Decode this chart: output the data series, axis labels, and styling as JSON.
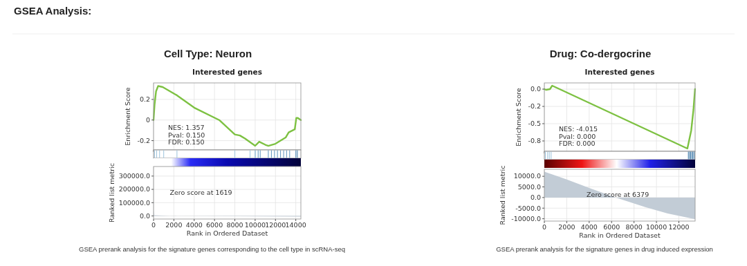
{
  "chart_data": [
    {
      "type": "line",
      "title": "Cell Type:   Neuron",
      "subtitle": "Interested genes",
      "ylabel": "Enrichment Score",
      "annotations": [
        "GSEA Analysis:",
        "NES: 1.357",
        "Pval: 0.150",
        "FDR: 0.150"
      ],
      "x": [
        0,
        100,
        250,
        450,
        900,
        2300,
        4000,
        6460,
        8000,
        8500,
        9000,
        10000,
        10400,
        11000,
        11300,
        12000,
        12500,
        13000,
        13300,
        13700,
        13900,
        14050,
        14200,
        14500
      ],
      "series": [
        {
          "color": "#7dc142",
          "values": [
            0,
            0.15,
            0.28,
            0.33,
            0.32,
            0.24,
            0.12,
            0,
            -0.14,
            -0.15,
            -0.18,
            -0.25,
            -0.21,
            -0.24,
            -0.25,
            -0.23,
            -0.2,
            -0.17,
            -0.12,
            -0.1,
            -0.09,
            0.02,
            0.02,
            0
          ]
        }
      ],
      "xlim": [
        0,
        14500
      ],
      "xticks": [
        0,
        2000,
        4000,
        6000,
        8000,
        10000,
        12000,
        14000
      ],
      "ylim": [
        -0.29,
        0.36
      ],
      "yticks": [
        -0.2,
        0,
        0.2
      ],
      "tick_labels": "y",
      "grid": true,
      "marker": "none",
      "line_style": "solid"
    },
    {
      "type": "area",
      "xlabel": "Rank in Ordered Dataset",
      "ylabel": "Ranked list metric",
      "annotations": [
        "Zero score at 1619",
        "GSEA prerank analysis for the signature genes corresponding to the cell type in scRNA-seq"
      ],
      "x": [
        0,
        8,
        60,
        1619,
        14500
      ],
      "series": [
        {
          "color": "#c2ccd6",
          "values": [
            354000,
            40000,
            5000,
            0,
            -5000
          ]
        }
      ],
      "xlim": [
        0,
        14500
      ],
      "xticks": [
        0,
        2000,
        4000,
        6000,
        8000,
        10000,
        12000,
        14000
      ],
      "ylim": [
        -23000,
        372000
      ],
      "yticks": [
        {
          "value": 0,
          "label": "0.0"
        },
        {
          "value": 100000,
          "label": "100000.0"
        },
        {
          "value": 200000,
          "label": "200000.0"
        },
        {
          "value": 300000,
          "label": "300000.0"
        }
      ],
      "grid": true
    },
    {
      "type": "line",
      "title": "Drug:  Co-dergocrine",
      "subtitle": "Interested genes",
      "ylabel": "Enrichment Score",
      "annotations": [
        "NES: -4.015",
        "Pval: 0.000",
        "FDR: 0.000"
      ],
      "x": [
        0,
        150,
        500,
        700,
        12760,
        13100,
        13300,
        13440
      ],
      "series": [
        {
          "color": "#7dc142",
          "values": [
            0,
            -0.01,
            0,
            0.05,
            -0.86,
            -0.6,
            -0.3,
            0
          ]
        }
      ],
      "xlim": [
        0,
        13450
      ],
      "xticks": [
        0,
        2000,
        4000,
        6000,
        8000,
        10000,
        12000
      ],
      "ylim": [
        -0.9,
        0.09
      ],
      "yticks": [
        {
          "value": 0,
          "label": "0.0"
        },
        {
          "value": -0.25,
          "label": "-0.2"
        },
        {
          "value": -0.5,
          "label": "-0.5"
        },
        {
          "value": -0.75,
          "label": "-0.8"
        }
      ],
      "tick_labels": "y",
      "grid": true,
      "marker": "none",
      "line_style": "solid"
    },
    {
      "type": "area",
      "xlabel": "Rank in Ordered Dataset",
      "ylabel": "Ranked list metric",
      "annotations": [
        "Zero score at 6379",
        "GSEA prerank analysis for the signature genes in drug induced expression"
      ],
      "x": [
        0,
        2000,
        4000,
        6379,
        9000,
        11000,
        13450
      ],
      "series": [
        {
          "color": "#c2ccd6",
          "values": [
            12200,
            8500,
            4500,
            0,
            -4500,
            -7500,
            -10200
          ]
        }
      ],
      "xlim": [
        0,
        13450
      ],
      "xticks": [
        0,
        2000,
        4000,
        6000,
        8000,
        10000,
        12000
      ],
      "ylim": [
        -11100,
        13300
      ],
      "yticks": [
        {
          "value": -10000,
          "label": "-10000.0"
        },
        {
          "value": -5000,
          "label": "-5000.0"
        },
        {
          "value": 0,
          "label": "0.0"
        },
        {
          "value": 5000,
          "label": "5000.0"
        },
        {
          "value": 10000,
          "label": "10000.0"
        }
      ],
      "grid": true
    }
  ]
}
